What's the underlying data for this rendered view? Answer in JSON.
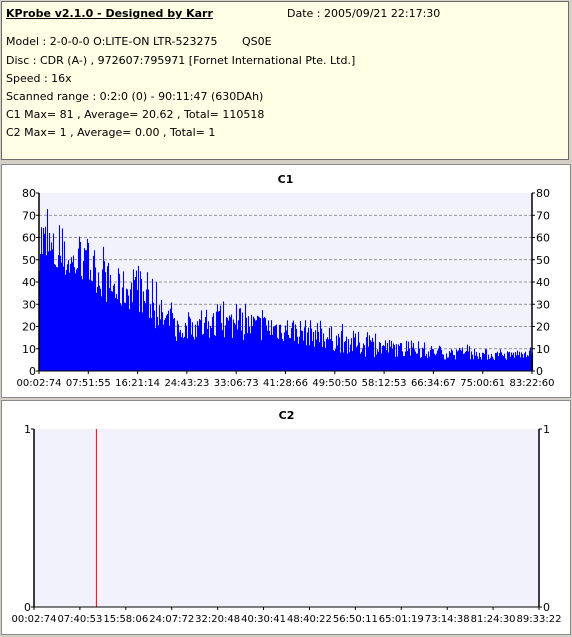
{
  "header": {
    "title": "KProbe v2.1.0 - Designed by Karr",
    "date": "Date : 2005/09/21 22:17:30",
    "model": "Model : 2-0-0-0 O:LITE-ON LTR-523275       QS0E",
    "disc": "Disc : CDR (A-) , 972607:795971 [Fornet International Pte. Ltd.]",
    "speed": "Speed : 16x",
    "range": "Scanned range : 0:2:0 (0) - 90:11:47 (630DAh)",
    "c1": "C1 Max= 81 , Average= 20.62 , Total= 110518",
    "c2": "C2 Max= 1 , Average= 0.00 , Total= 1"
  },
  "chart_data": [
    {
      "type": "bar",
      "title": "C1",
      "ylim": [
        0,
        80
      ],
      "yticks": [
        "0",
        "10",
        "20",
        "30",
        "40",
        "50",
        "60",
        "70",
        "80"
      ],
      "xticks": [
        "00:02:74",
        "07:51:55",
        "16:21:14",
        "24:43:23",
        "33:06:73",
        "41:28:66",
        "49:50:50",
        "58:12:53",
        "66:34:67",
        "75:00:61",
        "83:22:60"
      ],
      "x_range_min": [
        0.04,
        90.2
      ],
      "profile_x_min": [
        0,
        1,
        3,
        6,
        8,
        10,
        12,
        14,
        16,
        18,
        20,
        22,
        25,
        26,
        28,
        30,
        35,
        40,
        45,
        50,
        55,
        60,
        65,
        70,
        75,
        80,
        85,
        90
      ],
      "profile_avg": [
        55,
        52,
        48,
        46,
        45,
        42,
        38,
        33,
        34,
        32,
        28,
        22,
        17,
        16,
        18,
        18,
        19,
        18,
        17,
        15,
        12,
        10,
        9,
        8,
        7,
        7,
        6,
        8
      ],
      "profile_peak": [
        81,
        78,
        68,
        62,
        62,
        58,
        56,
        52,
        50,
        48,
        45,
        38,
        30,
        25,
        28,
        30,
        32,
        30,
        28,
        26,
        22,
        20,
        16,
        14,
        12,
        12,
        10,
        12
      ],
      "grid": true,
      "color": "#0000ff"
    },
    {
      "type": "bar",
      "title": "C2",
      "ylim": [
        0,
        1
      ],
      "yticks": [
        "0",
        "1"
      ],
      "xticks": [
        "00:02:74",
        "07:40:53",
        "15:58:06",
        "24:07:72",
        "32:20:48",
        "40:30:41",
        "48:40:22",
        "56:50:11",
        "65:01:19",
        "73:14:38",
        "81:24:30",
        "89:33:22"
      ],
      "x_range_min": [
        0.04,
        89.56
      ],
      "spikes": [
        {
          "x_min": 11.1,
          "value": 1
        }
      ],
      "grid": true,
      "color": "#ff0000"
    }
  ]
}
